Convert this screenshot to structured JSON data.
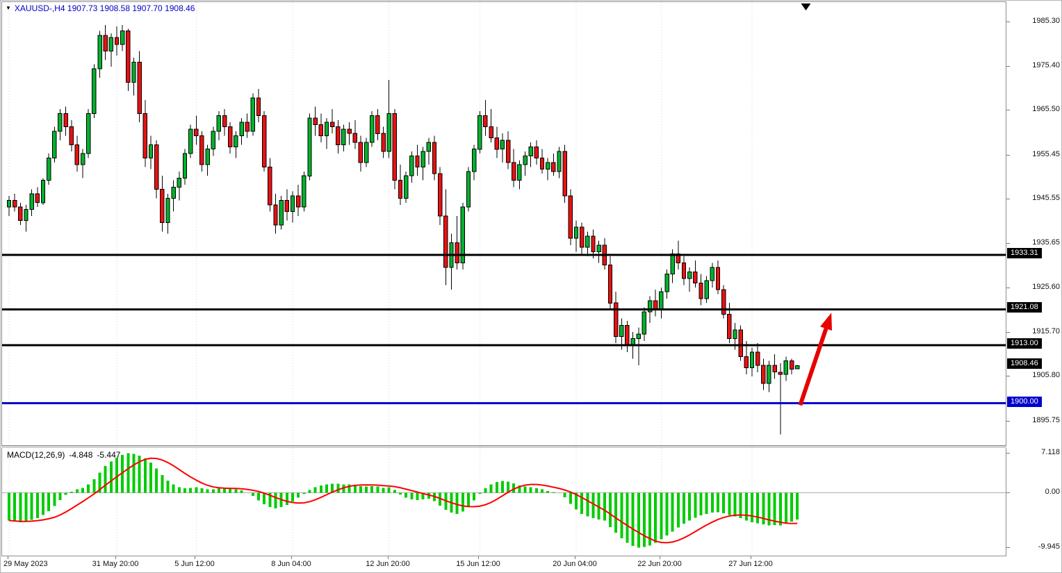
{
  "header": {
    "title_line": "XAUUSD-,H4 1907.73 1908.58 1907.70 1908.46",
    "symbol": "XAUUSD-",
    "timeframe": "H4",
    "open": "1907.73",
    "high": "1908.58",
    "low": "1907.70",
    "close": "1908.46"
  },
  "chart_data": {
    "type": "candlestick",
    "title": "XAUUSD- H4 candlestick chart with MACD(12,26,9) indicator pane",
    "colors": {
      "bull": "#00b22d",
      "bear": "#e81212",
      "outline": "#000000",
      "histogram": "#00cc00",
      "signal": "#ff0000",
      "arrow": "#e80000",
      "title_text": "#0000c8",
      "grid": "#d4d4d4"
    },
    "y_axis": {
      "labels": [
        "1985.30",
        "1975.40",
        "1965.50",
        "1955.45",
        "1945.55",
        "1935.65",
        "1925.60",
        "1915.70",
        "1905.80",
        "1895.75"
      ],
      "prices": [
        1985.3,
        1975.4,
        1965.5,
        1955.45,
        1945.55,
        1935.65,
        1925.6,
        1915.7,
        1905.8,
        1895.75
      ]
    },
    "x_axis": {
      "labels": [
        "29 May 2023",
        "31 May 20:00",
        "5 Jun 12:00",
        "8 Jun 04:00",
        "12 Jun 20:00",
        "15 Jun 12:00",
        "20 Jun 04:00",
        "22 Jun 20:00",
        "27 Jun 12:00"
      ],
      "tick_indices": [
        0,
        19,
        33,
        50,
        67,
        83,
        100,
        115,
        131
      ]
    },
    "levels": [
      {
        "label": "1933.31",
        "price": 1933.31,
        "color": "#000000"
      },
      {
        "label": "1921.08",
        "price": 1921.08,
        "color": "#000000"
      },
      {
        "label": "1913.00",
        "price": 1913.0,
        "color": "#000000"
      },
      {
        "label": "1900.00",
        "price": 1900.0,
        "color": "#0000cc"
      }
    ],
    "current_price": {
      "label": "1908.46",
      "price": 1908.46,
      "color": "#000000"
    },
    "candles": [
      [
        1944.0,
        1946.5,
        1942.0,
        1945.5
      ],
      [
        1945.5,
        1947.0,
        1943.0,
        1944.0
      ],
      [
        1944.0,
        1945.0,
        1940.0,
        1941.0
      ],
      [
        1941.0,
        1944.5,
        1938.5,
        1943.5
      ],
      [
        1943.5,
        1948.0,
        1942.0,
        1947.0
      ],
      [
        1947.0,
        1948.5,
        1944.0,
        1945.0
      ],
      [
        1945.0,
        1950.5,
        1944.5,
        1950.0
      ],
      [
        1950.0,
        1956.0,
        1949.0,
        1955.0
      ],
      [
        1955.0,
        1962.0,
        1954.0,
        1961.0
      ],
      [
        1961.0,
        1966.0,
        1959.0,
        1965.0
      ],
      [
        1965.0,
        1966.5,
        1960.0,
        1962.0
      ],
      [
        1962.0,
        1963.5,
        1956.5,
        1958.0
      ],
      [
        1958.0,
        1960.0,
        1952.0,
        1953.5
      ],
      [
        1953.5,
        1957.0,
        1950.5,
        1956.0
      ],
      [
        1956.0,
        1966.0,
        1955.0,
        1965.0
      ],
      [
        1965.0,
        1976.0,
        1964.0,
        1975.0
      ],
      [
        1975.0,
        1983.5,
        1973.0,
        1982.5
      ],
      [
        1982.5,
        1984.8,
        1977.0,
        1979.0
      ],
      [
        1979.0,
        1983.0,
        1975.5,
        1982.0
      ],
      [
        1982.0,
        1984.5,
        1978.0,
        1980.5
      ],
      [
        1980.5,
        1984.8,
        1979.0,
        1983.5
      ],
      [
        1983.5,
        1984.0,
        1970.0,
        1972.0
      ],
      [
        1972.0,
        1977.5,
        1969.0,
        1976.5
      ],
      [
        1976.5,
        1979.0,
        1963.0,
        1965.0
      ],
      [
        1965.0,
        1968.0,
        1953.0,
        1955.0
      ],
      [
        1955.0,
        1960.0,
        1952.5,
        1958.0
      ],
      [
        1958.0,
        1959.0,
        1946.0,
        1948.0
      ],
      [
        1948.0,
        1951.0,
        1938.5,
        1940.5
      ],
      [
        1940.5,
        1947.0,
        1938.0,
        1946.0
      ],
      [
        1946.0,
        1950.0,
        1943.0,
        1948.5
      ],
      [
        1948.5,
        1952.0,
        1945.5,
        1950.5
      ],
      [
        1950.5,
        1957.0,
        1949.0,
        1956.0
      ],
      [
        1956.0,
        1962.5,
        1955.0,
        1961.5
      ],
      [
        1961.5,
        1964.5,
        1958.0,
        1960.0
      ],
      [
        1960.0,
        1961.0,
        1952.0,
        1953.5
      ],
      [
        1953.5,
        1958.0,
        1951.0,
        1957.0
      ],
      [
        1957.0,
        1962.0,
        1955.5,
        1961.0
      ],
      [
        1961.0,
        1965.5,
        1959.0,
        1964.5
      ],
      [
        1964.5,
        1966.0,
        1960.0,
        1962.0
      ],
      [
        1962.0,
        1963.0,
        1956.0,
        1957.5
      ],
      [
        1957.5,
        1961.0,
        1955.0,
        1960.0
      ],
      [
        1960.0,
        1964.0,
        1958.0,
        1963.0
      ],
      [
        1963.0,
        1965.0,
        1959.5,
        1961.0
      ],
      [
        1961.0,
        1969.5,
        1960.0,
        1968.5
      ],
      [
        1968.5,
        1970.5,
        1963.0,
        1964.5
      ],
      [
        1964.5,
        1965.5,
        1952.0,
        1953.0
      ],
      [
        1953.0,
        1955.0,
        1943.0,
        1944.5
      ],
      [
        1944.5,
        1947.0,
        1938.0,
        1940.0
      ],
      [
        1940.0,
        1946.5,
        1939.0,
        1945.5
      ],
      [
        1945.5,
        1948.0,
        1941.0,
        1943.0
      ],
      [
        1943.0,
        1947.5,
        1940.5,
        1946.5
      ],
      [
        1946.5,
        1949.0,
        1942.0,
        1944.0
      ],
      [
        1944.0,
        1952.0,
        1943.0,
        1951.0
      ],
      [
        1951.0,
        1965.0,
        1950.0,
        1964.0
      ],
      [
        1964.0,
        1966.5,
        1960.0,
        1962.5
      ],
      [
        1962.5,
        1965.0,
        1958.5,
        1960.0
      ],
      [
        1960.0,
        1964.0,
        1957.0,
        1963.0
      ],
      [
        1963.0,
        1966.0,
        1960.5,
        1962.0
      ],
      [
        1962.0,
        1963.5,
        1956.0,
        1958.0
      ],
      [
        1958.0,
        1962.5,
        1956.5,
        1961.5
      ],
      [
        1961.5,
        1963.0,
        1958.0,
        1960.5
      ],
      [
        1960.5,
        1963.5,
        1957.0,
        1958.5
      ],
      [
        1958.5,
        1960.0,
        1952.0,
        1954.0
      ],
      [
        1954.0,
        1959.5,
        1953.0,
        1958.5
      ],
      [
        1958.5,
        1965.5,
        1957.5,
        1964.5
      ],
      [
        1964.5,
        1966.0,
        1959.0,
        1960.5
      ],
      [
        1960.5,
        1962.0,
        1955.0,
        1956.5
      ],
      [
        1956.5,
        1972.5,
        1955.0,
        1965.0
      ],
      [
        1965.0,
        1966.0,
        1948.0,
        1950.0
      ],
      [
        1950.0,
        1953.5,
        1944.5,
        1946.0
      ],
      [
        1946.0,
        1952.0,
        1945.0,
        1951.0
      ],
      [
        1951.0,
        1956.5,
        1949.5,
        1955.5
      ],
      [
        1955.5,
        1958.0,
        1951.0,
        1953.0
      ],
      [
        1953.0,
        1957.5,
        1950.0,
        1956.5
      ],
      [
        1956.5,
        1959.5,
        1953.5,
        1958.5
      ],
      [
        1958.5,
        1960.0,
        1950.0,
        1951.5
      ],
      [
        1951.5,
        1953.0,
        1940.0,
        1942.0
      ],
      [
        1942.0,
        1948.0,
        1926.5,
        1930.5
      ],
      [
        1930.5,
        1938.0,
        1925.5,
        1936.0
      ],
      [
        1936.0,
        1942.0,
        1930.0,
        1931.5
      ],
      [
        1931.5,
        1945.0,
        1930.0,
        1944.0
      ],
      [
        1944.0,
        1953.0,
        1943.0,
        1952.0
      ],
      [
        1952.0,
        1958.0,
        1950.0,
        1957.0
      ],
      [
        1957.0,
        1965.5,
        1956.0,
        1964.5
      ],
      [
        1964.5,
        1968.0,
        1960.0,
        1962.0
      ],
      [
        1962.0,
        1966.0,
        1958.5,
        1959.5
      ],
      [
        1959.5,
        1962.0,
        1955.0,
        1957.0
      ],
      [
        1957.0,
        1960.5,
        1954.0,
        1959.0
      ],
      [
        1959.0,
        1961.0,
        1952.5,
        1954.0
      ],
      [
        1954.0,
        1957.0,
        1948.5,
        1950.0
      ],
      [
        1950.0,
        1954.5,
        1948.0,
        1953.5
      ],
      [
        1953.5,
        1956.5,
        1951.0,
        1955.5
      ],
      [
        1955.5,
        1958.5,
        1953.0,
        1957.5
      ],
      [
        1957.5,
        1959.0,
        1953.5,
        1955.0
      ],
      [
        1955.0,
        1957.0,
        1951.5,
        1952.5
      ],
      [
        1952.5,
        1955.0,
        1950.0,
        1954.0
      ],
      [
        1954.0,
        1956.0,
        1951.0,
        1952.0
      ],
      [
        1952.0,
        1957.5,
        1950.5,
        1956.5
      ],
      [
        1956.5,
        1958.0,
        1945.0,
        1946.5
      ],
      [
        1946.5,
        1948.0,
        1935.5,
        1937.0
      ],
      [
        1937.0,
        1941.0,
        1934.0,
        1939.5
      ],
      [
        1939.5,
        1940.5,
        1933.5,
        1935.0
      ],
      [
        1935.0,
        1938.5,
        1933.0,
        1937.5
      ],
      [
        1937.5,
        1939.0,
        1932.5,
        1934.0
      ],
      [
        1934.0,
        1936.5,
        1931.5,
        1935.5
      ],
      [
        1935.5,
        1937.0,
        1930.0,
        1931.0
      ],
      [
        1931.0,
        1933.0,
        1921.0,
        1922.5
      ],
      [
        1922.5,
        1925.0,
        1913.5,
        1915.0
      ],
      [
        1915.0,
        1919.0,
        1912.0,
        1917.5
      ],
      [
        1917.5,
        1918.5,
        1911.5,
        1913.0
      ],
      [
        1913.0,
        1916.0,
        1910.0,
        1914.5
      ],
      [
        1914.5,
        1917.0,
        1908.5,
        1915.5
      ],
      [
        1915.5,
        1921.5,
        1914.0,
        1920.5
      ],
      [
        1920.5,
        1924.0,
        1918.0,
        1923.0
      ],
      [
        1923.0,
        1925.5,
        1919.5,
        1921.0
      ],
      [
        1921.0,
        1926.0,
        1919.0,
        1925.0
      ],
      [
        1925.0,
        1930.0,
        1923.5,
        1929.0
      ],
      [
        1929.0,
        1934.5,
        1927.0,
        1933.5
      ],
      [
        1933.5,
        1936.5,
        1930.0,
        1931.5
      ],
      [
        1931.5,
        1933.0,
        1926.5,
        1928.0
      ],
      [
        1928.0,
        1930.5,
        1925.0,
        1929.5
      ],
      [
        1929.5,
        1932.0,
        1926.0,
        1927.0
      ],
      [
        1927.0,
        1929.0,
        1922.0,
        1923.5
      ],
      [
        1923.5,
        1928.5,
        1922.5,
        1927.5
      ],
      [
        1927.5,
        1931.5,
        1926.0,
        1930.5
      ],
      [
        1930.5,
        1932.0,
        1924.5,
        1925.5
      ],
      [
        1925.5,
        1926.5,
        1919.0,
        1920.0
      ],
      [
        1920.0,
        1922.5,
        1913.5,
        1914.5
      ],
      [
        1914.5,
        1918.0,
        1912.0,
        1916.5
      ],
      [
        1916.5,
        1917.5,
        1909.5,
        1910.5
      ],
      [
        1910.5,
        1914.0,
        1906.5,
        1908.0
      ],
      [
        1908.0,
        1912.5,
        1906.0,
        1911.5
      ],
      [
        1911.5,
        1913.5,
        1907.0,
        1908.5
      ],
      [
        1908.5,
        1910.0,
        1903.0,
        1904.5
      ],
      [
        1904.5,
        1909.5,
        1902.5,
        1908.5
      ],
      [
        1908.5,
        1911.0,
        1905.5,
        1907.0
      ],
      [
        1907.0,
        1909.0,
        1893.0,
        1906.5
      ],
      [
        1906.5,
        1910.5,
        1905.0,
        1909.5
      ],
      [
        1909.5,
        1910.0,
        1906.5,
        1907.7
      ],
      [
        1907.73,
        1908.58,
        1907.7,
        1908.46
      ]
    ],
    "macd": {
      "title": "MACD(12,26,9)",
      "value_main": "-4.848",
      "value_signal": "-5.447",
      "axis_labels": [
        "7.118",
        "0.00",
        "-9.945"
      ],
      "axis_values": [
        7.118,
        0,
        -9.945
      ],
      "histogram": [
        -5.0,
        -5.2,
        -5.3,
        -5.2,
        -4.9,
        -4.6,
        -4.0,
        -3.3,
        -2.4,
        -1.3,
        -0.4,
        0.2,
        0.6,
        0.9,
        1.5,
        2.4,
        3.6,
        4.8,
        5.6,
        6.3,
        6.8,
        7.1,
        7.0,
        6.7,
        6.2,
        5.4,
        4.4,
        3.2,
        2.2,
        1.5,
        1.0,
        0.8,
        0.9,
        1.0,
        0.8,
        0.6,
        0.6,
        0.8,
        0.9,
        0.7,
        0.6,
        0.4,
        0.0,
        -0.6,
        -1.4,
        -2.1,
        -2.6,
        -2.8,
        -2.6,
        -2.2,
        -1.6,
        -0.9,
        -0.2,
        0.5,
        1.0,
        1.3,
        1.5,
        1.6,
        1.6,
        1.5,
        1.5,
        1.4,
        1.2,
        1.1,
        1.2,
        1.1,
        0.9,
        1.0,
        0.5,
        -0.3,
        -0.9,
        -1.2,
        -1.3,
        -1.2,
        -1.1,
        -1.5,
        -2.3,
        -3.1,
        -3.6,
        -3.8,
        -3.4,
        -2.5,
        -1.4,
        -0.2,
        0.8,
        1.5,
        1.9,
        2.1,
        2.0,
        1.7,
        1.3,
        1.1,
        1.0,
        0.8,
        0.6,
        0.3,
        0.1,
        0.0,
        -0.8,
        -2.0,
        -3.0,
        -3.8,
        -4.3,
        -4.6,
        -4.8,
        -5.0,
        -6.2,
        -7.2,
        -8.2,
        -9.0,
        -9.6,
        -9.9,
        -9.8,
        -9.5,
        -9.0,
        -8.4,
        -7.7,
        -7.0,
        -6.3,
        -5.6,
        -5.0,
        -4.5,
        -4.1,
        -3.8,
        -3.6,
        -3.5,
        -3.7,
        -4.0,
        -4.3,
        -4.6,
        -5.0,
        -5.3,
        -5.5,
        -5.7,
        -5.9,
        -5.8,
        -5.9,
        -5.6,
        -5.2,
        -4.848
      ]
    },
    "arrow": {
      "from_index": 139.5,
      "from_price": 1899.6,
      "to_index": 145,
      "to_price": 1920.3
    },
    "shift_marker_index": 140.5
  }
}
